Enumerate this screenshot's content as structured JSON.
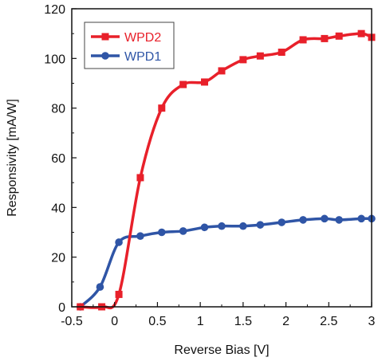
{
  "chart_data": {
    "type": "line",
    "title": "",
    "xlabel": "Reverse Bias [V]",
    "ylabel": "Responsivity [mA/W]",
    "xlim": [
      -0.5,
      3
    ],
    "ylim": [
      0,
      120
    ],
    "x_ticks": [
      "-0.5",
      "0",
      "0.5",
      "1",
      "1.5",
      "2",
      "2.5",
      "3"
    ],
    "y_ticks": [
      "0",
      "20",
      "40",
      "60",
      "80",
      "100",
      "120"
    ],
    "x_tick_values": [
      -0.5,
      0,
      0.5,
      1,
      1.5,
      2,
      2.5,
      3
    ],
    "y_tick_values": [
      0,
      20,
      40,
      60,
      80,
      100,
      120
    ],
    "grid": false,
    "legend_position": "top-left",
    "series": [
      {
        "name": "WPD2",
        "color": "#e8202a",
        "marker": "square",
        "x": [
          -0.4,
          -0.15,
          0.05,
          0.3,
          0.55,
          0.8,
          1.05,
          1.25,
          1.5,
          1.7,
          1.95,
          2.2,
          2.45,
          2.62,
          2.88,
          3.0
        ],
        "y": [
          0,
          0,
          5,
          52,
          80,
          89.5,
          90.5,
          95,
          99.5,
          101,
          102.5,
          107.5,
          108,
          109,
          110,
          108.5
        ]
      },
      {
        "name": "WPD1",
        "color": "#2f55a6",
        "marker": "circle",
        "x": [
          -0.4,
          -0.17,
          0.05,
          0.3,
          0.55,
          0.8,
          1.05,
          1.25,
          1.5,
          1.7,
          1.95,
          2.2,
          2.45,
          2.62,
          2.88,
          3.0
        ],
        "y": [
          0,
          8,
          26,
          28.5,
          30,
          30.5,
          32,
          32.5,
          32.5,
          33,
          34,
          35,
          35.5,
          35,
          35.5,
          35.5
        ]
      }
    ]
  }
}
